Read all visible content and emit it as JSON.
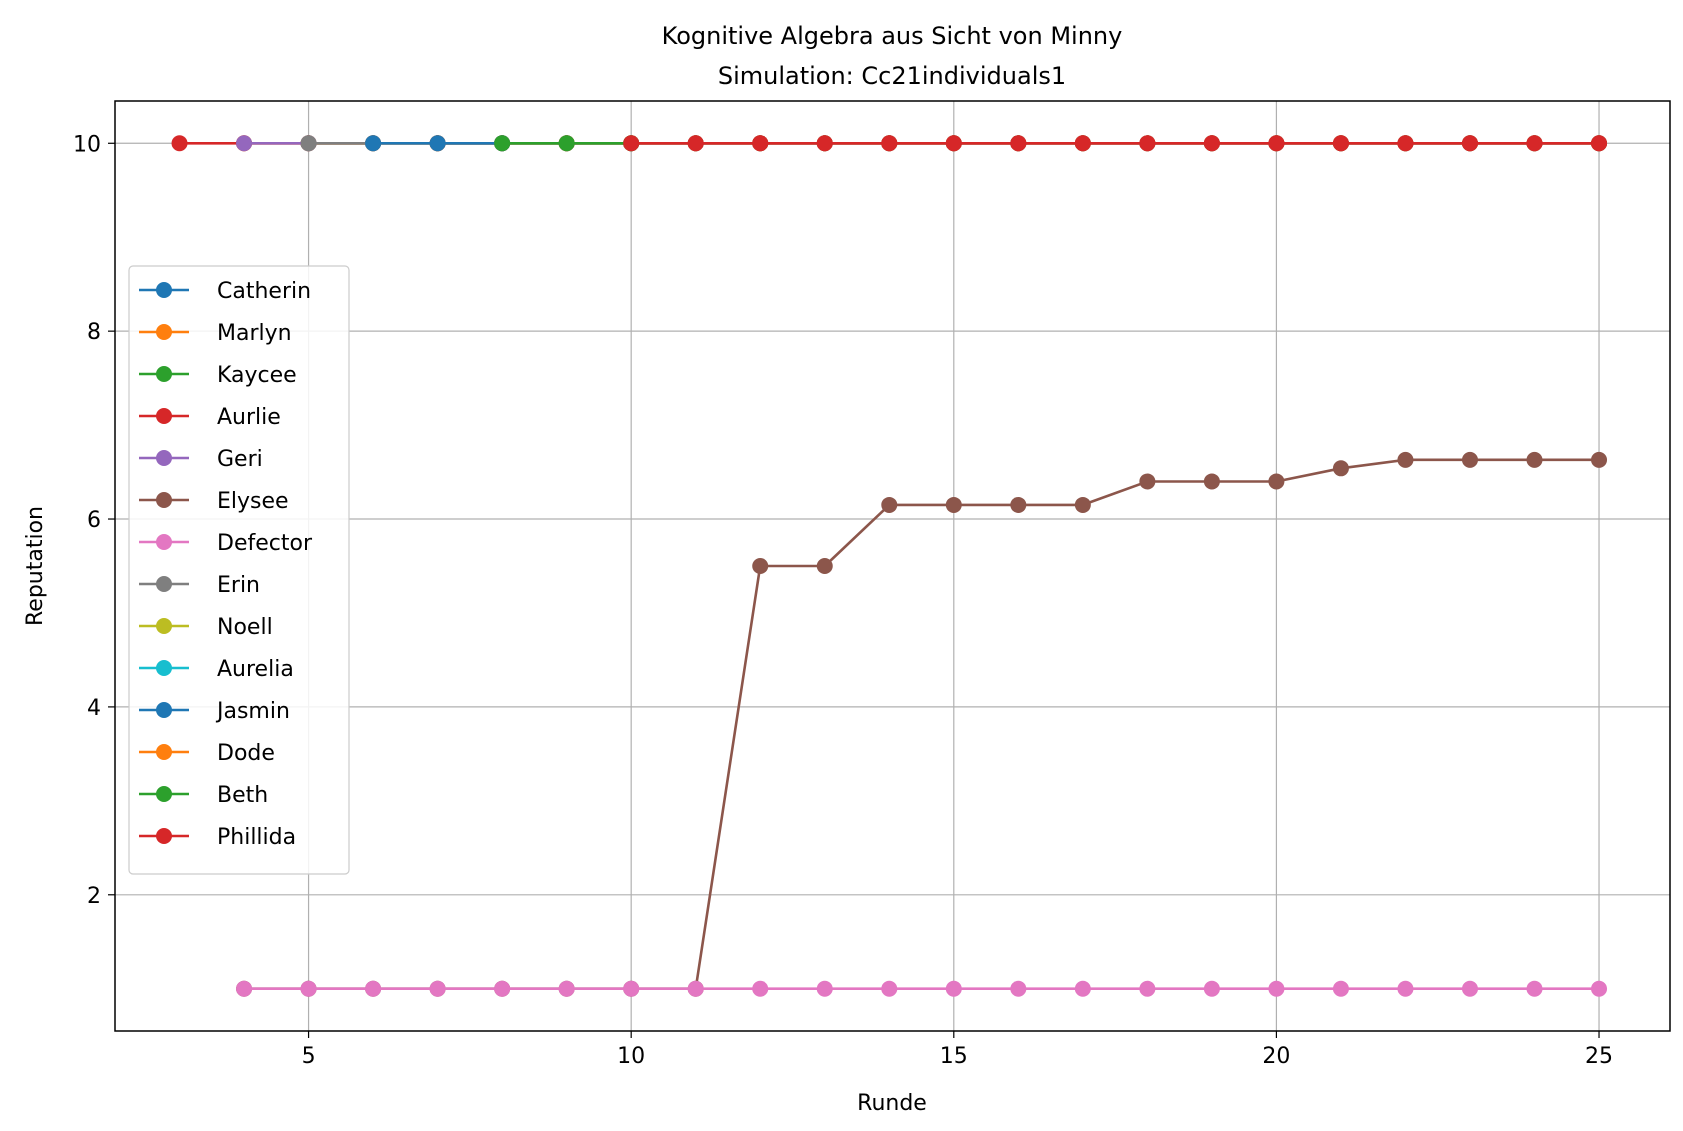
{
  "chart_data": {
    "type": "line",
    "title": "Kognitive Algebra aus Sicht von Minny",
    "subtitle": "Simulation: Cc21individuals1",
    "xlabel": "Runde",
    "ylabel": "Reputation",
    "xlim": [
      2,
      26.1
    ],
    "ylim": [
      0.55,
      10.45
    ],
    "xticks": [
      5,
      10,
      15,
      20,
      25
    ],
    "yticks": [
      2,
      4,
      6,
      8,
      10
    ],
    "grid": true,
    "legend_position": "center-left",
    "series": [
      {
        "name": "Catherin",
        "color": "#1f77b4",
        "x": [
          7,
          8,
          9,
          10,
          11,
          12,
          13,
          14,
          15,
          16,
          17,
          18,
          19,
          20,
          21,
          22,
          23,
          24,
          25
        ],
        "y": [
          10,
          10,
          10,
          10,
          10,
          10,
          10,
          10,
          10,
          10,
          10,
          10,
          10,
          10,
          10,
          10,
          10,
          10,
          10
        ]
      },
      {
        "name": "Marlyn",
        "color": "#ff7f0e",
        "x": [
          4,
          5,
          6,
          7,
          8,
          9,
          10,
          11,
          12,
          13,
          14,
          15,
          16,
          17,
          18,
          19,
          20,
          21,
          22,
          23,
          24,
          25
        ],
        "y": [
          10,
          10,
          10,
          10,
          10,
          10,
          10,
          10,
          10,
          10,
          10,
          10,
          10,
          10,
          10,
          10,
          10,
          10,
          10,
          10,
          10,
          10
        ]
      },
      {
        "name": "Kaycee",
        "color": "#2ca02c",
        "x": [
          5,
          6,
          7,
          8,
          9,
          10,
          11,
          12,
          13,
          14,
          15,
          16,
          17,
          18,
          19,
          20,
          21,
          22,
          23,
          24,
          25
        ],
        "y": [
          10,
          10,
          10,
          10,
          10,
          10,
          10,
          10,
          10,
          10,
          10,
          10,
          10,
          10,
          10,
          10,
          10,
          10,
          10,
          10,
          10
        ]
      },
      {
        "name": "Aurlie",
        "color": "#d62728",
        "x": [
          3,
          4,
          5,
          6,
          7,
          8,
          9,
          10,
          11,
          12,
          13,
          14,
          15,
          16,
          17,
          18,
          19,
          20,
          21,
          22,
          23,
          24,
          25
        ],
        "y": [
          10,
          10,
          10,
          10,
          10,
          10,
          10,
          10,
          10,
          10,
          10,
          10,
          10,
          10,
          10,
          10,
          10,
          10,
          10,
          10,
          10,
          10,
          10
        ]
      },
      {
        "name": "Geri",
        "color": "#9467bd",
        "x": [
          4,
          5
        ],
        "y": [
          10,
          10
        ]
      },
      {
        "name": "Elysee",
        "color": "#8c564b",
        "x": [
          4,
          5,
          6,
          7,
          8,
          9,
          10,
          11,
          12,
          13,
          14,
          15,
          16,
          17,
          18,
          19,
          20,
          21,
          22,
          23,
          24,
          25
        ],
        "y": [
          1,
          1,
          1,
          1,
          1,
          1,
          1,
          1,
          5.5,
          5.5,
          6.15,
          6.15,
          6.15,
          6.15,
          6.4,
          6.4,
          6.4,
          6.54,
          6.63,
          6.63,
          6.63,
          6.63
        ]
      },
      {
        "name": "Defector",
        "color": "#e377c2",
        "x": [
          4,
          5,
          6,
          7,
          8,
          9,
          10,
          11,
          12,
          13,
          14,
          15,
          16,
          17,
          18,
          19,
          20,
          21,
          22,
          23,
          24,
          25
        ],
        "y": [
          1,
          1,
          1,
          1,
          1,
          1,
          1,
          1,
          1,
          1,
          1,
          1,
          1,
          1,
          1,
          1,
          1,
          1,
          1,
          1,
          1,
          1
        ]
      },
      {
        "name": "Erin",
        "color": "#7f7f7f",
        "x": [
          5,
          6
        ],
        "y": [
          10,
          10
        ]
      },
      {
        "name": "Noell",
        "color": "#bcbd22",
        "x": [],
        "y": []
      },
      {
        "name": "Aurelia",
        "color": "#17becf",
        "x": [],
        "y": []
      },
      {
        "name": "Jasmin",
        "color": "#1f77b4",
        "x": [
          6,
          7,
          8
        ],
        "y": [
          10,
          10,
          10
        ]
      },
      {
        "name": "Dode",
        "color": "#ff7f0e",
        "x": [],
        "y": []
      },
      {
        "name": "Beth",
        "color": "#2ca02c",
        "x": [
          8,
          9,
          10
        ],
        "y": [
          10,
          10,
          10
        ]
      },
      {
        "name": "Phillida",
        "color": "#d62728",
        "x": [
          10,
          11,
          12,
          13,
          14,
          15,
          16,
          17,
          18,
          19,
          20,
          21,
          22,
          23,
          24,
          25
        ],
        "y": [
          10,
          10,
          10,
          10,
          10,
          10,
          10,
          10,
          10,
          10,
          10,
          10,
          10,
          10,
          10,
          10
        ]
      }
    ]
  }
}
